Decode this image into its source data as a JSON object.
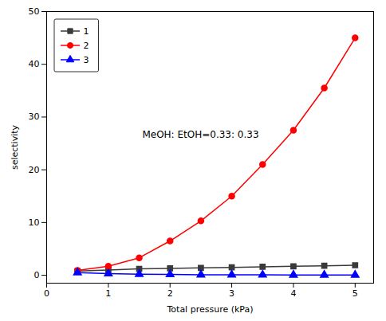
{
  "chart_data": {
    "type": "line",
    "x": [
      0.5,
      1.0,
      1.5,
      2.0,
      2.5,
      3.0,
      3.5,
      4.0,
      4.5,
      5.0
    ],
    "series": [
      {
        "name": "1",
        "color": "#3a3a3a",
        "marker": "square",
        "line_style": "solid",
        "values": [
          0.8,
          1.0,
          1.2,
          1.3,
          1.4,
          1.5,
          1.6,
          1.7,
          1.8,
          1.9
        ]
      },
      {
        "name": "2",
        "color": "#ff0000",
        "marker": "circle",
        "line_style": "solid",
        "values": [
          0.9,
          1.7,
          3.3,
          6.5,
          10.3,
          15.0,
          21.0,
          27.5,
          35.5,
          45.0
        ]
      },
      {
        "name": "3",
        "color": "#0000ff",
        "marker": "triangle",
        "line_style": "solid",
        "values": [
          0.5,
          0.3,
          0.2,
          0.15,
          0.1,
          0.08,
          0.07,
          0.06,
          0.05,
          0.05
        ]
      }
    ],
    "xlabel": "Total pressure (kPa)",
    "ylabel": "selectivity",
    "annotations": [
      {
        "text": "MeOH: EtOH=0.33: 0.33",
        "x": 1.55,
        "y": 26.0
      }
    ],
    "xlim": [
      0.0,
      5.3
    ],
    "ylim": [
      -1.5,
      50
    ],
    "xticks": [
      0,
      1,
      2,
      3,
      4,
      5
    ],
    "yticks": [
      0,
      10,
      20,
      30,
      40,
      50
    ],
    "grid": false,
    "legend": "upper left"
  }
}
